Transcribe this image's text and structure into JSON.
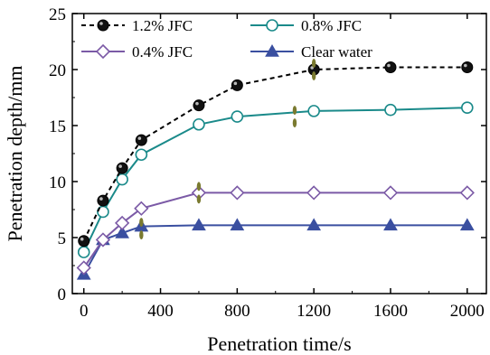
{
  "chart_data": {
    "type": "line",
    "xlabel": "Penetration time/s",
    "ylabel": "Penetration depth/mm",
    "xlim": [
      -60,
      2100
    ],
    "ylim": [
      0,
      25
    ],
    "xticks": [
      0,
      400,
      800,
      1200,
      1600,
      2000
    ],
    "yticks": [
      0,
      5,
      10,
      15,
      20,
      25
    ],
    "legend_position": "top-left",
    "series": [
      {
        "name": "1.2% JFC",
        "color": "#000000",
        "line_style": "dashed",
        "marker": "filled-circle",
        "x": [
          0,
          100,
          200,
          300,
          600,
          800,
          1200,
          1600,
          2000
        ],
        "y": [
          4.7,
          8.3,
          11.2,
          13.7,
          16.8,
          18.6,
          20.0,
          20.2,
          20.2
        ]
      },
      {
        "name": "0.8% JFC",
        "color": "#1a8a8a",
        "line_style": "solid",
        "marker": "open-circle",
        "x": [
          0,
          100,
          200,
          300,
          600,
          800,
          1200,
          1600,
          2000
        ],
        "y": [
          3.7,
          7.3,
          10.2,
          12.4,
          15.1,
          15.8,
          16.3,
          16.4,
          16.6
        ]
      },
      {
        "name": "0.4% JFC",
        "color": "#7b5aa6",
        "line_style": "solid",
        "marker": "open-diamond",
        "x": [
          0,
          100,
          200,
          300,
          600,
          800,
          1200,
          1600,
          2000
        ],
        "y": [
          2.3,
          4.8,
          6.3,
          7.6,
          9.0,
          9.0,
          9.0,
          9.0,
          9.0
        ]
      },
      {
        "name": "Clear water",
        "color": "#3a4fa0",
        "line_style": "solid",
        "marker": "filled-triangle",
        "x": [
          0,
          100,
          200,
          300,
          600,
          800,
          1200,
          1600,
          2000
        ],
        "y": [
          1.7,
          4.8,
          5.4,
          6.0,
          6.1,
          6.1,
          6.1,
          6.1,
          6.1
        ]
      }
    ],
    "annotations": [
      {
        "type": "break-marker",
        "color": "#7a7a30",
        "x": 1200,
        "y": 20.0
      },
      {
        "type": "break-marker",
        "color": "#7a7a30",
        "x": 1100,
        "y": 15.8
      },
      {
        "type": "break-marker",
        "color": "#7a7a30",
        "x": 600,
        "y": 9.0
      },
      {
        "type": "break-marker",
        "color": "#7a7a30",
        "x": 300,
        "y": 5.8
      }
    ]
  }
}
